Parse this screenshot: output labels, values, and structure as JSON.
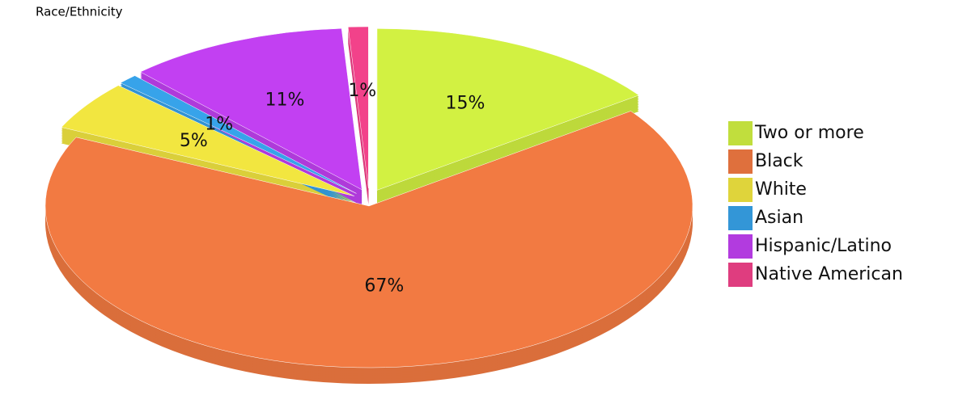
{
  "chart_data": {
    "type": "pie",
    "title": "Race/Ethnicity",
    "categories": [
      "Two or more",
      "Black",
      "White",
      "Asian",
      "Hispanic/Latino",
      "Native American"
    ],
    "values": [
      15,
      67,
      5,
      1,
      11,
      1
    ],
    "value_labels": [
      "15%",
      "67%",
      "5%",
      "1%",
      "11%",
      "1%"
    ],
    "colors": [
      "#d2f142",
      "#f27a42",
      "#f2e640",
      "#37a3ea",
      "#c240f2",
      "#f2428a"
    ],
    "legend": "right"
  }
}
